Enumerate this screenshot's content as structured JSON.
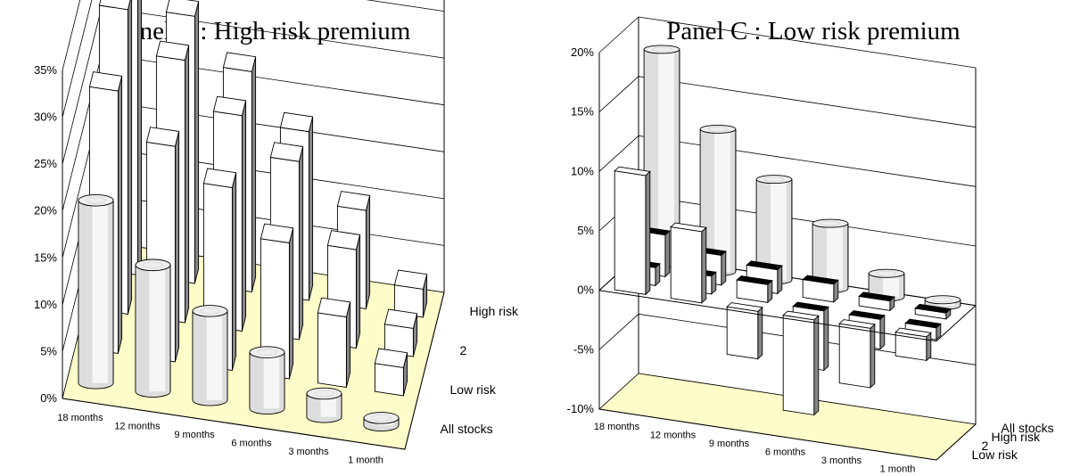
{
  "chart_data": [
    {
      "type": "bar3d",
      "title": "Panel A : High risk premium",
      "categories": [
        "18 months",
        "12 months",
        "9 months",
        "6 months",
        "3 months",
        "1 month"
      ],
      "series_labels": [
        "High risk",
        "2",
        "Low risk",
        "All stocks"
      ],
      "yticks": [
        "0%",
        "5%",
        "10%",
        "15%",
        "20%",
        "25%",
        "30%",
        "35%"
      ],
      "ylim": [
        0,
        35
      ],
      "series": [
        {
          "name": "High risk",
          "shape": "box",
          "front": "#ffffff",
          "top": "#ffffff",
          "side": "#888888",
          "values": [
            34.0,
            28.5,
            23.5,
            18.0,
            10.5,
            3.0
          ]
        },
        {
          "name": "2",
          "shape": "box",
          "front": "#ffffff",
          "top": "#ffffff",
          "side": "#888888",
          "values": [
            32.5,
            28.0,
            23.0,
            19.0,
            10.5,
            3.0
          ]
        },
        {
          "name": "Low risk",
          "shape": "box",
          "front": "#ffffff",
          "top": "#ffffff",
          "side": "#888888",
          "values": [
            28.0,
            23.0,
            19.5,
            14.5,
            7.5,
            3.0
          ]
        },
        {
          "name": "All stocks",
          "shape": "cylinder",
          "front": "#dddddd",
          "top": "#eeeeee",
          "side": "#999999",
          "values": [
            19.5,
            13.5,
            9.5,
            6.0,
            2.5,
            0.8
          ]
        }
      ]
    },
    {
      "type": "bar3d",
      "title": "Panel C : Low risk premium",
      "categories": [
        "18 months",
        "12 months",
        "9 months",
        "6 months",
        "3 months",
        "1 month"
      ],
      "series_labels": [
        "All stocks",
        "High risk",
        "2",
        "Low risk"
      ],
      "yticks": [
        "-10%",
        "-5%",
        "0%",
        "5%",
        "10%",
        "15%",
        "20%"
      ],
      "ylim": [
        -10,
        20
      ],
      "series": [
        {
          "name": "All stocks",
          "shape": "cylinder",
          "front": "#dddddd",
          "top": "#eeeeee",
          "side": "#999999",
          "values": [
            18.0,
            12.0,
            8.5,
            5.5,
            2.0,
            0.5
          ]
        },
        {
          "name": "High risk",
          "shape": "box",
          "front": "#ffffff",
          "top": "#000000",
          "side": "#888888",
          "values": [
            3.5,
            2.5,
            2.0,
            1.5,
            0.8,
            0.5
          ]
        },
        {
          "name": "2",
          "shape": "box",
          "front": "#ffffff",
          "top": "#000000",
          "side": "#888888",
          "values": [
            1.5,
            1.5,
            1.5,
            -5.0,
            -2.5,
            -1.0
          ]
        },
        {
          "name": "Low risk",
          "shape": "box",
          "front": "#ffffff",
          "top": "#ffffff",
          "side": "#888888",
          "values": [
            10.0,
            6.0,
            -4.0,
            -8.0,
            -5.0,
            -2.0
          ]
        }
      ]
    }
  ]
}
